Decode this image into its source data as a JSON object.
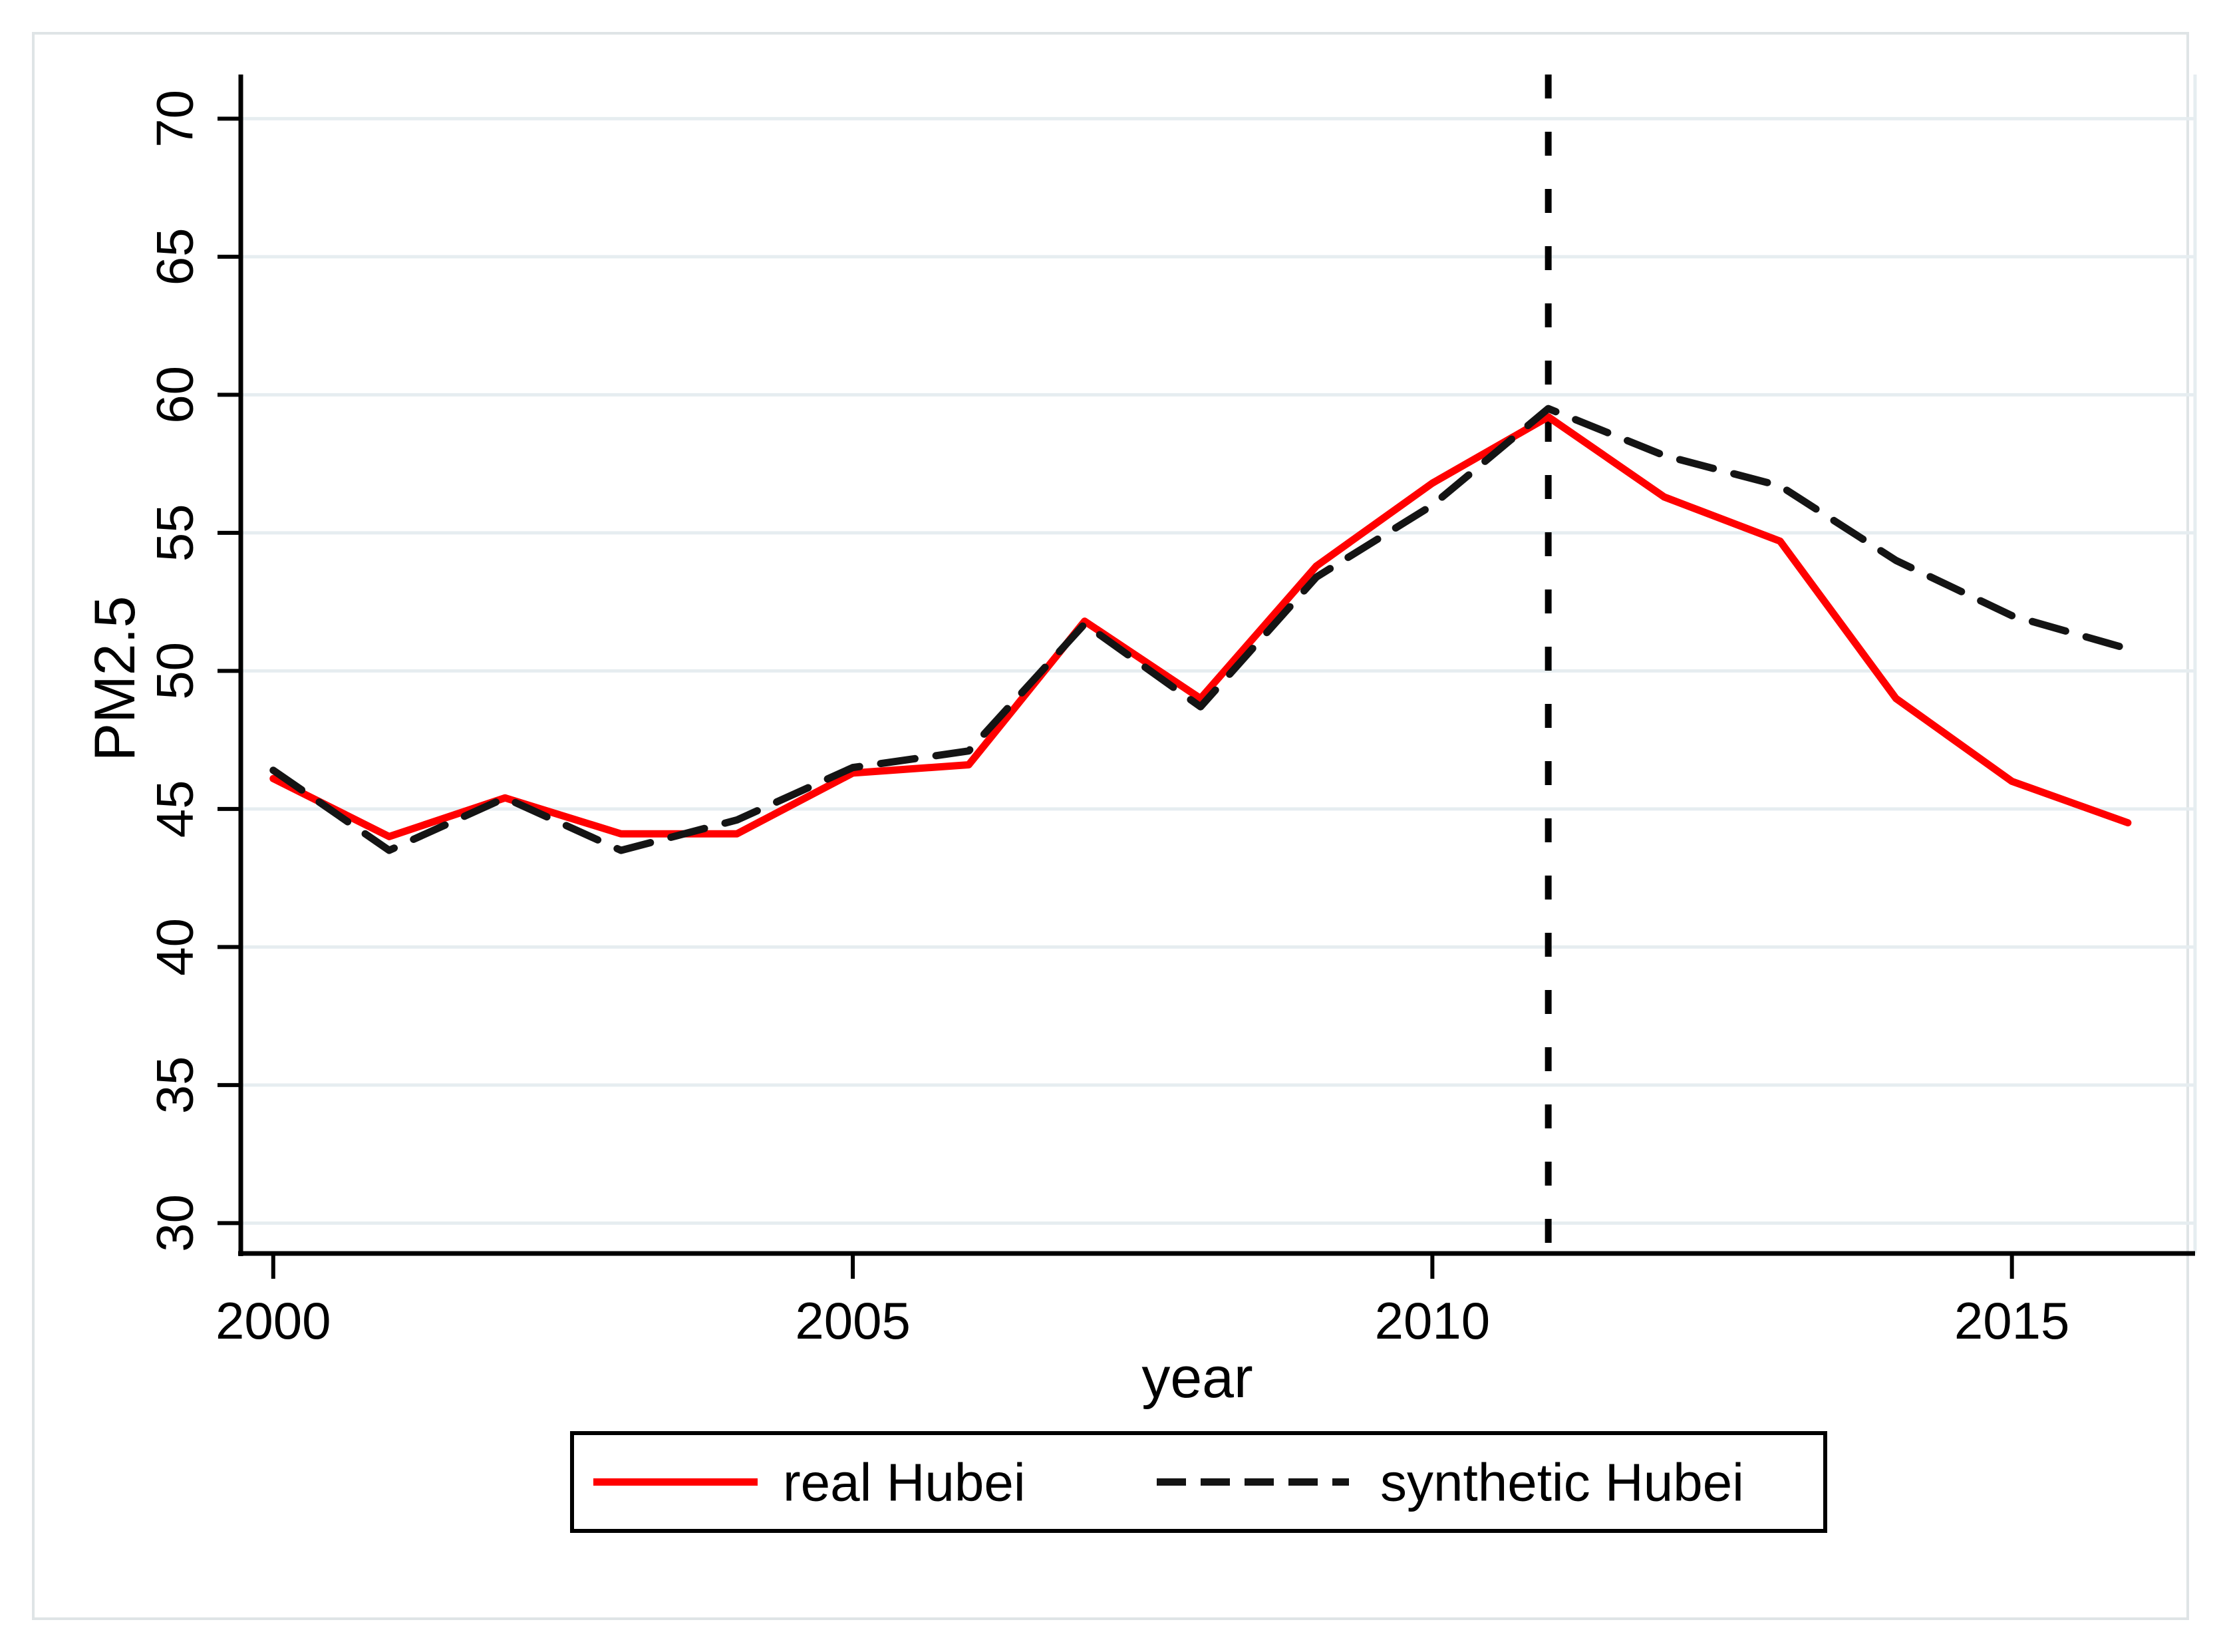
{
  "figure": {
    "background_color": "#ffffff",
    "frame_color": "#dfe4e6"
  },
  "axes": {
    "x_title": "year",
    "y_title": "PM2.5",
    "x_tick_labels": [
      "2000",
      "2005",
      "2010",
      "2015"
    ],
    "y_tick_labels": [
      "30",
      "35",
      "40",
      "45",
      "50",
      "55",
      "60",
      "65",
      "70"
    ],
    "axis_color": "#000000"
  },
  "legend": {
    "entries": [
      {
        "label": "real Hubei",
        "swatch": "solid-red-line"
      },
      {
        "label": "synthetic Hubei",
        "swatch": "dashed-black-line"
      }
    ],
    "border_color": "#000000",
    "background": "#ffffff"
  },
  "chart_data": {
    "type": "line",
    "title": "",
    "xlabel": "year",
    "ylabel": "PM2.5",
    "x": [
      2000,
      2001,
      2002,
      2003,
      2004,
      2005,
      2006,
      2007,
      2008,
      2009,
      2010,
      2011,
      2012,
      2013,
      2014,
      2015,
      2016
    ],
    "series": [
      {
        "name": "real Hubei",
        "color": "#ff0000",
        "line_style": "solid",
        "values": [
          46.1,
          44.0,
          45.4,
          44.1,
          44.1,
          46.3,
          46.6,
          51.8,
          49.0,
          53.8,
          56.8,
          59.2,
          56.3,
          54.7,
          49.0,
          46.0,
          44.5
        ]
      },
      {
        "name": "synthetic Hubei",
        "color": "#141414",
        "line_style": "dashed",
        "values": [
          46.4,
          43.5,
          45.4,
          43.5,
          44.6,
          46.5,
          47.1,
          51.7,
          48.7,
          53.4,
          56.0,
          59.5,
          57.8,
          56.7,
          54.0,
          52.0,
          50.8
        ]
      }
    ],
    "xlim": [
      1999.72,
      2016.58
    ],
    "ylim": [
      28.9,
      71.6
    ],
    "xticks": [
      2000,
      2005,
      2010,
      2015
    ],
    "yticks": [
      30,
      35,
      40,
      45,
      50,
      55,
      60,
      65,
      70
    ],
    "grid": "horizontal",
    "grid_color": "#e6edf0",
    "vline": {
      "x": 2011,
      "color": "#000000",
      "style": "dotted"
    },
    "legend_position": "bottom-center"
  }
}
